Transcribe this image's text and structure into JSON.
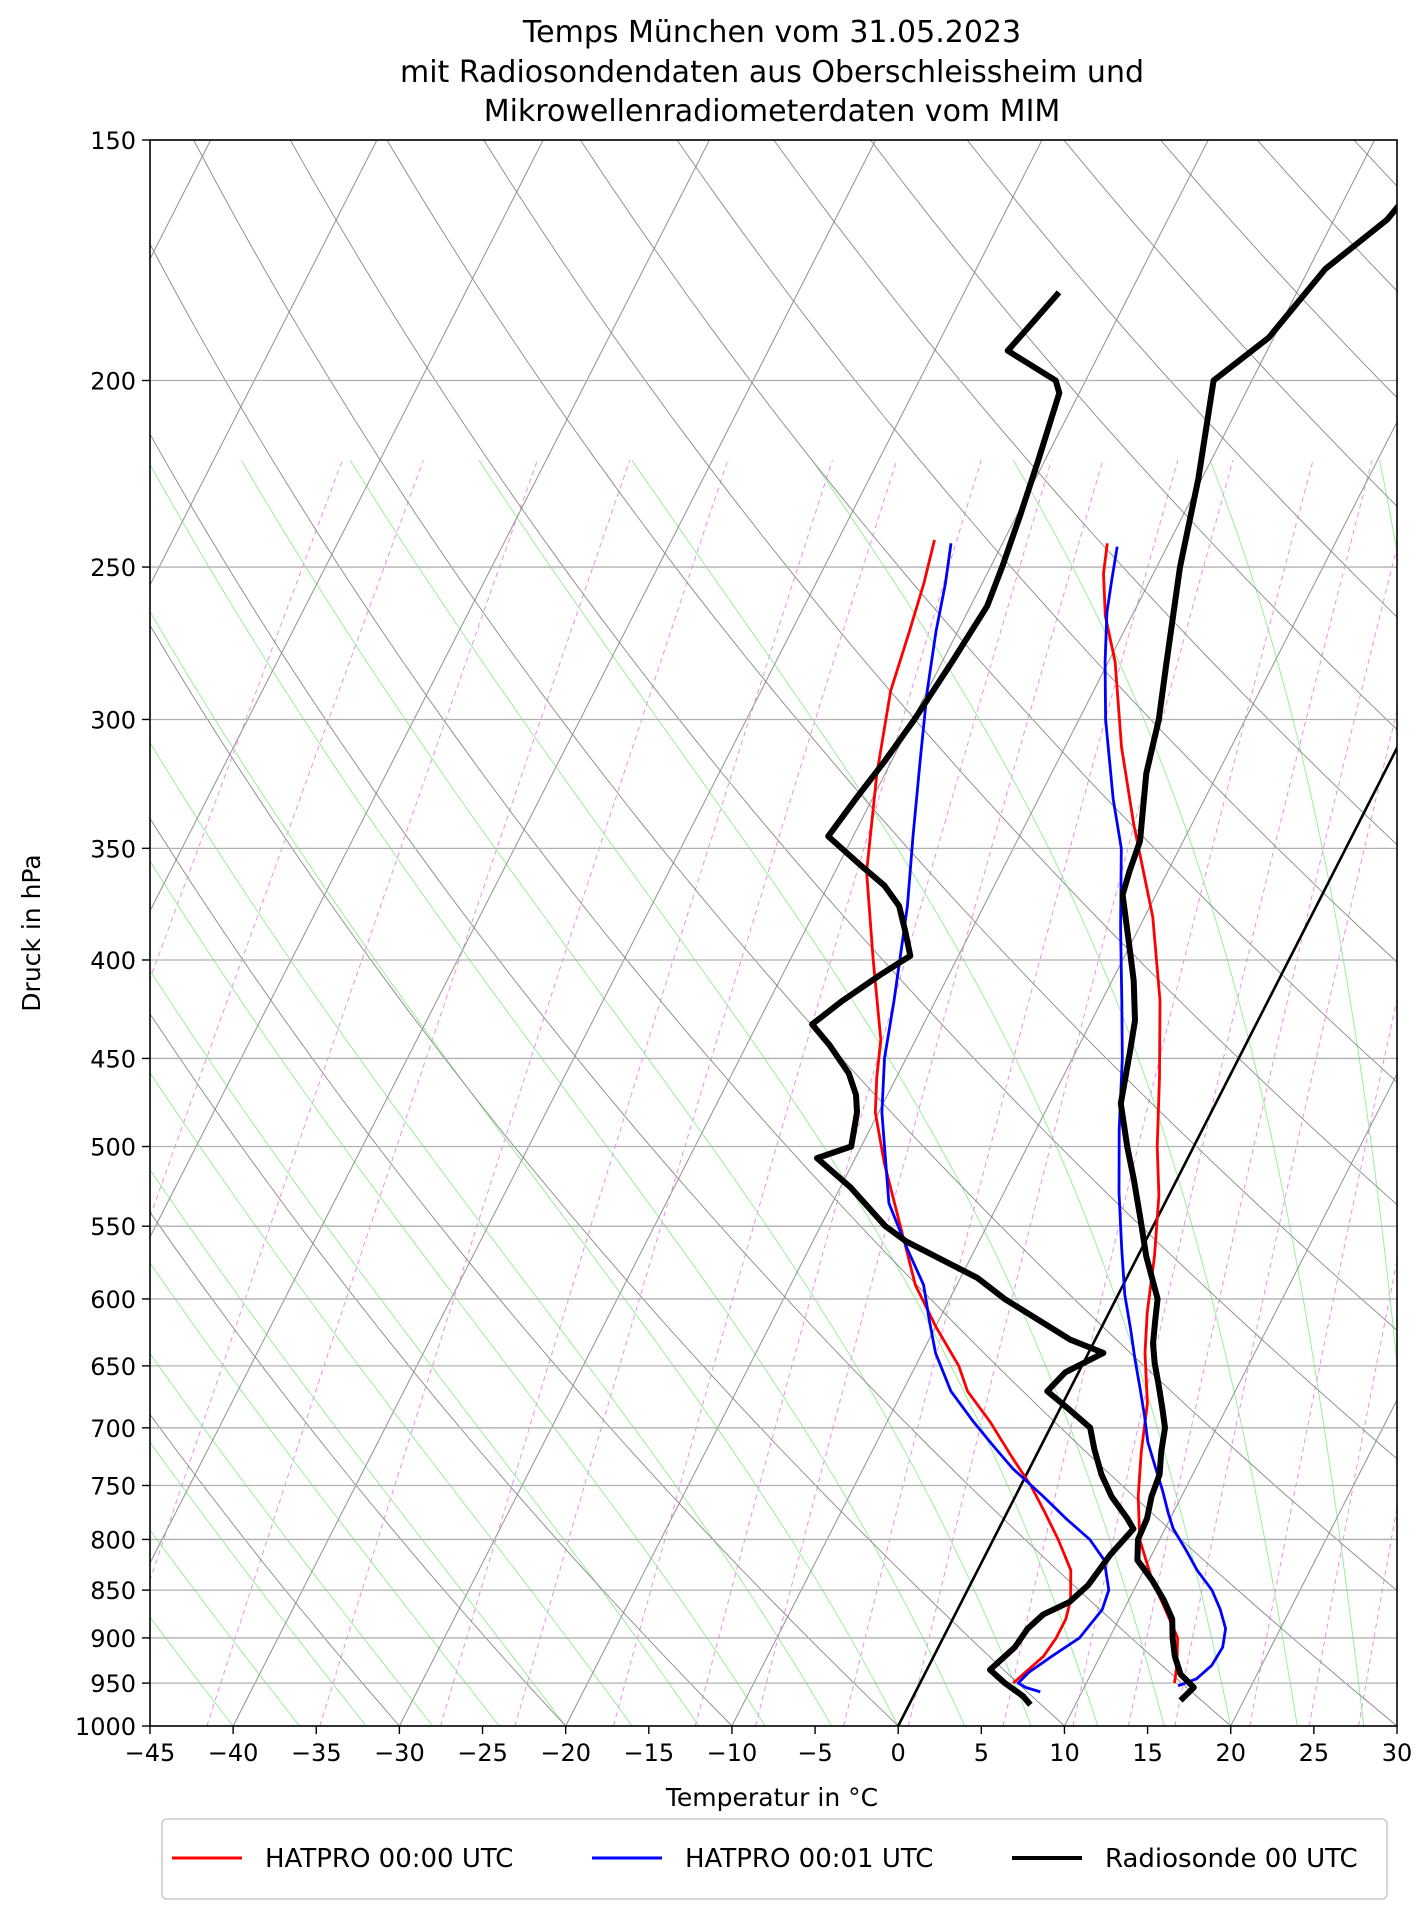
{
  "chart_data": {
    "type": "skew-t log-p",
    "title": [
      "Temps München vom 31.05.2023",
      "mit Radiosondendaten aus Oberschleissheim und",
      "Mikrowellenradiometerdaten vom MIM"
    ],
    "xlabel": "Temperatur in °C",
    "ylabel": "Druck in hPa",
    "xlim": [
      -45,
      30
    ],
    "ylim": [
      1000,
      150
    ],
    "y_scale": "log",
    "x_ticks": [
      -45,
      -40,
      -35,
      -30,
      -25,
      -20,
      -15,
      -10,
      -5,
      0,
      5,
      10,
      15,
      20,
      25,
      30
    ],
    "x_tick_labels": [
      "−45",
      "−40",
      "−35",
      "−30",
      "−25",
      "−20",
      "−15",
      "−10",
      "−5",
      "0",
      "5",
      "10",
      "15",
      "20",
      "25",
      "30"
    ],
    "y_ticks": [
      1000,
      950,
      900,
      850,
      800,
      750,
      700,
      650,
      600,
      550,
      500,
      450,
      400,
      350,
      300,
      250,
      200,
      150
    ],
    "y_tick_labels": [
      "1000",
      "950",
      "900",
      "850",
      "800",
      "750",
      "700",
      "650",
      "600",
      "550",
      "500",
      "450",
      "400",
      "350",
      "300",
      "250",
      "200",
      "150"
    ],
    "grid": true,
    "legend_position": "bottom",
    "reference_lines": {
      "isotherm_zero_color": "#000000",
      "isotherms_color": "#999999",
      "dry_adiabats_color": "#888888",
      "moist_adiabats_color": "#90ee90",
      "mixing_ratio_color": "#ee82ee"
    },
    "series": [
      {
        "name": "HATPRO 00:00 UTC",
        "color": "#ff0000",
        "lines": [
          {
            "points": [
              [
                15.3,
                950
              ],
              [
                14.9,
                930
              ],
              [
                14.1,
                900
              ],
              [
                12.5,
                870
              ],
              [
                10.8,
                840
              ],
              [
                8.8,
                800
              ],
              [
                7.4,
                760
              ],
              [
                6.2,
                720
              ],
              [
                5.1,
                680
              ],
              [
                3.4,
                640
              ],
              [
                2.3,
                610
              ],
              [
                1.0,
                570
              ],
              [
                -0.6,
                530
              ],
              [
                -2.2,
                500
              ],
              [
                -4.2,
                460
              ],
              [
                -6.5,
                420
              ],
              [
                -9.5,
                380
              ],
              [
                -13.5,
                340
              ],
              [
                -16.6,
                310
              ],
              [
                -19.6,
                280
              ],
              [
                -21.6,
                265
              ],
              [
                -23.0,
                252
              ],
              [
                -23.7,
                243
              ]
            ]
          },
          {
            "points": [
              [
                5.6,
                950
              ],
              [
                6.6,
                920
              ],
              [
                6.8,
                900
              ],
              [
                6.8,
                880
              ],
              [
                6.5,
                860
              ],
              [
                5.6,
                830
              ],
              [
                3.9,
                800
              ],
              [
                2.3,
                775
              ],
              [
                0.6,
                750
              ],
              [
                -1.4,
                725
              ],
              [
                -3.8,
                695
              ],
              [
                -6.1,
                670
              ],
              [
                -7.4,
                650
              ],
              [
                -10.0,
                620
              ],
              [
                -12.5,
                590
              ],
              [
                -14.5,
                560
              ],
              [
                -15.2,
                550
              ],
              [
                -18.1,
                510
              ],
              [
                -20.2,
                480
              ],
              [
                -21.2,
                460
              ],
              [
                -22.1,
                440
              ],
              [
                -25.0,
                400
              ],
              [
                -28.1,
                360
              ],
              [
                -30.5,
                320
              ],
              [
                -32.2,
                290
              ],
              [
                -32.9,
                270
              ],
              [
                -33.5,
                255
              ],
              [
                -34.2,
                242
              ]
            ]
          }
        ]
      },
      {
        "name": "HATPRO 00:01 UTC",
        "color": "#0000ff",
        "lines": [
          {
            "points": [
              [
                15.6,
                953
              ],
              [
                16.5,
                945
              ],
              [
                17.0,
                930
              ],
              [
                17.1,
                910
              ],
              [
                16.7,
                890
              ],
              [
                15.8,
                870
              ],
              [
                14.7,
                850
              ],
              [
                13.2,
                830
              ],
              [
                11.9,
                810
              ],
              [
                10.5,
                790
              ],
              [
                9.7,
                775
              ],
              [
                8.7,
                755
              ],
              [
                7.6,
                735
              ],
              [
                6.3,
                712
              ],
              [
                5.3,
                690
              ],
              [
                4.2,
                668
              ],
              [
                3.0,
                645
              ],
              [
                1.8,
                622
              ],
              [
                0.4,
                597
              ],
              [
                -1.2,
                565
              ],
              [
                -3.1,
                528
              ],
              [
                -5.0,
                490
              ],
              [
                -7.0,
                450
              ],
              [
                -8.8,
                420
              ],
              [
                -11.1,
                385
              ],
              [
                -13.5,
                350
              ],
              [
                -15.5,
                330
              ],
              [
                -18.4,
                300
              ],
              [
                -20.2,
                280
              ],
              [
                -21.6,
                264
              ],
              [
                -22.3,
                254
              ],
              [
                -23.0,
                244
              ]
            ]
          },
          {
            "points": [
              [
                7.5,
                960
              ],
              [
                6.5,
                955
              ],
              [
                5.9,
                950
              ],
              [
                6.2,
                938
              ],
              [
                7.1,
                920
              ],
              [
                8.2,
                900
              ],
              [
                8.7,
                870
              ],
              [
                8.5,
                850
              ],
              [
                7.3,
                820
              ],
              [
                5.8,
                800
              ],
              [
                3.7,
                780
              ],
              [
                1.7,
                760
              ],
              [
                -1.0,
                735
              ],
              [
                -2.9,
                715
              ],
              [
                -4.8,
                695
              ],
              [
                -7.1,
                670
              ],
              [
                -9.2,
                640
              ],
              [
                -10.6,
                615
              ],
              [
                -12.0,
                590
              ],
              [
                -14.1,
                565
              ],
              [
                -16.6,
                535
              ],
              [
                -18.6,
                500
              ],
              [
                -19.8,
                480
              ],
              [
                -21.3,
                450
              ],
              [
                -22.5,
                420
              ],
              [
                -23.4,
                400
              ],
              [
                -24.6,
                375
              ],
              [
                -26.4,
                345
              ],
              [
                -28.3,
                315
              ],
              [
                -30.0,
                290
              ],
              [
                -31.3,
                270
              ],
              [
                -32.2,
                255
              ],
              [
                -33.1,
                243
              ]
            ]
          }
        ]
      },
      {
        "name": "Radiosonde 00 UTC",
        "color": "#000000",
        "lines": [
          {
            "points": [
              [
                16.2,
                970
              ],
              [
                16.6,
                955
              ],
              [
                15.4,
                940
              ],
              [
                14.5,
                920
              ],
              [
                13.8,
                900
              ],
              [
                13.2,
                880
              ],
              [
                12.1,
                860
              ],
              [
                10.8,
                840
              ],
              [
                9.3,
                820
              ],
              [
                8.7,
                800
              ],
              [
                8.6,
                780
              ],
              [
                8.2,
                760
              ],
              [
                8.0,
                740
              ],
              [
                7.4,
                720
              ],
              [
                6.9,
                700
              ],
              [
                6.1,
                683
              ],
              [
                5.2,
                665
              ],
              [
                4.3,
                648
              ],
              [
                3.6,
                633
              ],
              [
                3.0,
                615
              ],
              [
                2.5,
                600
              ],
              [
                0.5,
                570
              ],
              [
                -1.0,
                545
              ],
              [
                -2.6,
                520
              ],
              [
                -4.0,
                500
              ],
              [
                -5.7,
                475
              ],
              [
                -6.8,
                445
              ],
              [
                -7.4,
                430
              ],
              [
                -8.7,
                410
              ],
              [
                -10.3,
                390
              ],
              [
                -12.0,
                370
              ],
              [
                -12.3,
                360
              ],
              [
                -12.6,
                347
              ],
              [
                -14.3,
                320
              ],
              [
                -15.2,
                300
              ],
              [
                -16.5,
                280
              ],
              [
                -18.6,
                250
              ],
              [
                -20.2,
                225
              ],
              [
                -22.3,
                200
              ],
              [
                -20.3,
                190
              ],
              [
                -19.0,
                175
              ],
              [
                -16.8,
                165
              ],
              [
                -15.3,
                150
              ]
            ]
          },
          {
            "points": [
              [
                7.3,
                975
              ],
              [
                6.6,
                965
              ],
              [
                5.1,
                950
              ],
              [
                3.8,
                935
              ],
              [
                4.6,
                910
              ],
              [
                4.8,
                890
              ],
              [
                5.3,
                875
              ],
              [
                6.5,
                862
              ],
              [
                7.1,
                845
              ],
              [
                7.5,
                815
              ],
              [
                8.1,
                790
              ],
              [
                7.4,
                780
              ],
              [
                5.8,
                760
              ],
              [
                4.5,
                740
              ],
              [
                3.3,
                718
              ],
              [
                2.4,
                700
              ],
              [
                0.6,
                685
              ],
              [
                -1.3,
                670
              ],
              [
                -0.8,
                655
              ],
              [
                0.9,
                640
              ],
              [
                -1.5,
                630
              ],
              [
                -6.7,
                600
              ],
              [
                -9.0,
                585
              ],
              [
                -14.4,
                560
              ],
              [
                -16.1,
                550
              ],
              [
                -19.4,
                525
              ],
              [
                -22.3,
                507
              ],
              [
                -20.6,
                500
              ],
              [
                -21.3,
                480
              ],
              [
                -21.9,
                470
              ],
              [
                -23.0,
                458
              ],
              [
                -25.0,
                443
              ],
              [
                -26.7,
                432
              ],
              [
                -25.6,
                420
              ],
              [
                -24.1,
                407
              ],
              [
                -22.9,
                398
              ],
              [
                -24.0,
                386
              ],
              [
                -25.1,
                375
              ],
              [
                -26.6,
                366
              ],
              [
                -28.7,
                357
              ],
              [
                -31.5,
                345
              ],
              [
                -31.0,
                330
              ],
              [
                -30.4,
                315
              ],
              [
                -29.9,
                300
              ],
              [
                -29.4,
                280
              ],
              [
                -29.0,
                262
              ],
              [
                -29.3,
                250
              ],
              [
                -29.8,
                235
              ],
              [
                -30.4,
                220
              ],
              [
                -31.2,
                203
              ],
              [
                -31.8,
                200
              ],
              [
                -35.6,
                193
              ],
              [
                -35.0,
                187
              ],
              [
                -34.3,
                180
              ]
            ]
          }
        ]
      }
    ]
  }
}
